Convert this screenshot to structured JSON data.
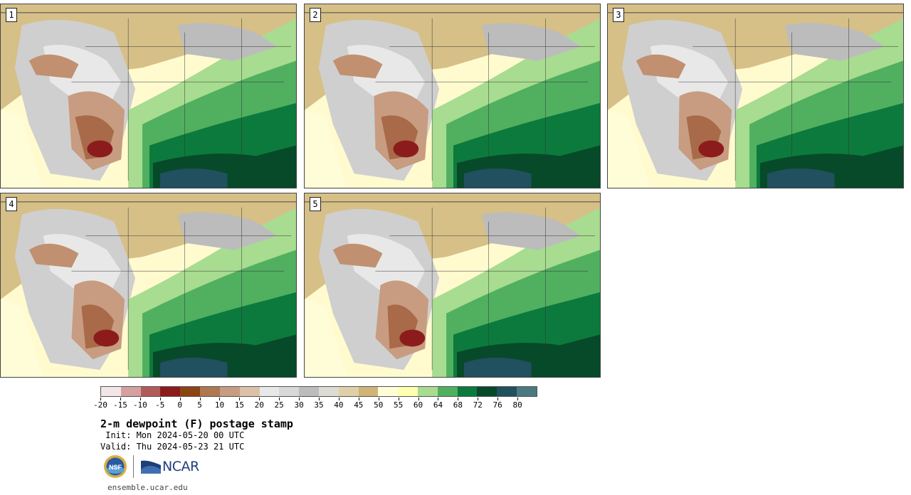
{
  "panels": [
    {
      "label": "1"
    },
    {
      "label": "2"
    },
    {
      "label": "3"
    },
    {
      "label": "4"
    },
    {
      "label": "5"
    }
  ],
  "colorbar": {
    "ticks": [
      "-20",
      "-15",
      "-10",
      "-5",
      "0",
      "5",
      "10",
      "15",
      "20",
      "25",
      "30",
      "35",
      "40",
      "45",
      "50",
      "55",
      "60",
      "64",
      "68",
      "72",
      "76",
      "80"
    ],
    "colors": [
      "#f3e6e6",
      "#d4a0a0",
      "#b05a5a",
      "#8c1c1c",
      "#8b4513",
      "#b07850",
      "#c89c80",
      "#ddc0a8",
      "#e8e8e8",
      "#d8d8d8",
      "#bcbcbc",
      "#dcdcd4",
      "#e0d0a8",
      "#d0b478",
      "#fffcd8",
      "#ffffb0",
      "#a8dc90",
      "#50b060",
      "#0c7a3c",
      "#064a2a",
      "#21505e",
      "#4a7a80"
    ]
  },
  "title": "2-m dewpoint (F) postage stamp",
  "init": " Init: Mon 2024-05-20 00 UTC",
  "valid": "Valid: Thu 2024-05-23 21 UTC",
  "logos": {
    "nsf": "NSF",
    "ncar": "NCAR"
  },
  "url": "ensemble.ucar.edu"
}
